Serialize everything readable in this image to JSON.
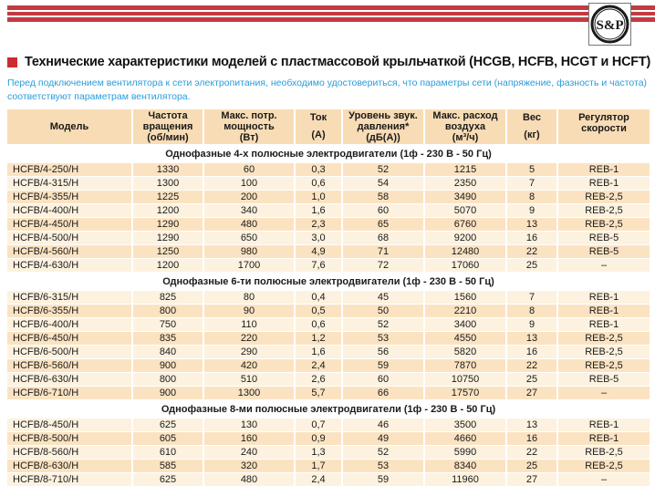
{
  "brand": {
    "logo_text": "S&P"
  },
  "page": {
    "title": "Технические характеристики моделей с пластмассовой крыльчаткой (HCGB, HCFB, HCGT и HCFT)",
    "note": "Перед подключением вентилятора к сети электропитания, необходимо удостовериться, что параметры сети (напряжение, фазность и частота) соответствуют параметрам вентилятора."
  },
  "colors": {
    "stripe_red": "#C23B41",
    "bullet_red": "#CE2A31",
    "note_blue": "#2B9CD8",
    "header_bg": "#F8DCB5",
    "row_peach": "#FBE3C2",
    "row_cream": "#FDF2DF"
  },
  "table": {
    "columns": [
      {
        "lines": [
          "Модель"
        ],
        "style": "center"
      },
      {
        "lines": [
          "Частота",
          "вращения",
          "(об/мин)"
        ],
        "style": "center"
      },
      {
        "lines": [
          "Макс. потр.",
          "мощность",
          "(Вт)"
        ],
        "style": "center"
      },
      {
        "lines": [
          "Ток",
          "(А)"
        ],
        "style": "spread"
      },
      {
        "lines": [
          "Уровень звук.",
          "давления*",
          "(дБ(А))"
        ],
        "style": "center"
      },
      {
        "lines": [
          "Макс. расход",
          "воздуха",
          "(м³/ч)"
        ],
        "style": "center"
      },
      {
        "lines": [
          "Вес",
          "(кг)"
        ],
        "style": "spread"
      },
      {
        "lines": [
          "Регулятор",
          "скорости"
        ],
        "style": "top"
      }
    ],
    "sections": [
      {
        "title": "Однофазные 4-х полюсные электродвигатели (1ф - 230 В - 50 Гц)",
        "first_row_shade": "peach",
        "rows": [
          [
            "HCFB/4-250/H",
            "1330",
            "60",
            "0,3",
            "52",
            "1215",
            "5",
            "REB-1"
          ],
          [
            "HCFB/4-315/H",
            "1300",
            "100",
            "0,6",
            "54",
            "2350",
            "7",
            "REB-1"
          ],
          [
            "HCFB/4-355/H",
            "1225",
            "200",
            "1,0",
            "58",
            "3490",
            "8",
            "REB-2,5"
          ],
          [
            "HCFB/4-400/H",
            "1200",
            "340",
            "1,6",
            "60",
            "5070",
            "9",
            "REB-2,5"
          ],
          [
            "HCFB/4-450/H",
            "1290",
            "480",
            "2,3",
            "65",
            "6760",
            "13",
            "REB-2,5"
          ],
          [
            "HCFB/4-500/H",
            "1290",
            "650",
            "3,0",
            "68",
            "9200",
            "16",
            "REB-5"
          ],
          [
            "HCFB/4-560/H",
            "1250",
            "980",
            "4,9",
            "71",
            "12480",
            "22",
            "REB-5"
          ],
          [
            "HCFB/4-630/H",
            "1200",
            "1700",
            "7,6",
            "72",
            "17060",
            "25",
            "–"
          ]
        ]
      },
      {
        "title": "Однофазные 6-ти полюсные электродвигатели (1ф - 230 В - 50 Гц)",
        "first_row_shade": "cream",
        "rows": [
          [
            "HCFB/6-315/H",
            "825",
            "80",
            "0,4",
            "45",
            "1560",
            "7",
            "REB-1"
          ],
          [
            "HCFB/6-355/H",
            "800",
            "90",
            "0,5",
            "50",
            "2210",
            "8",
            "REB-1"
          ],
          [
            "HCFB/6-400/H",
            "750",
            "110",
            "0,6",
            "52",
            "3400",
            "9",
            "REB-1"
          ],
          [
            "HCFB/6-450/H",
            "835",
            "220",
            "1,2",
            "53",
            "4550",
            "13",
            "REB-2,5"
          ],
          [
            "HCFB/6-500/H",
            "840",
            "290",
            "1,6",
            "56",
            "5820",
            "16",
            "REB-2,5"
          ],
          [
            "HCFB/6-560/H",
            "900",
            "420",
            "2,4",
            "59",
            "7870",
            "22",
            "REB-2,5"
          ],
          [
            "HCFB/6-630/H",
            "800",
            "510",
            "2,6",
            "60",
            "10750",
            "25",
            "REB-5"
          ],
          [
            "HCFB/6-710/H",
            "900",
            "1300",
            "5,7",
            "66",
            "17570",
            "27",
            "–"
          ]
        ]
      },
      {
        "title": "Однофазные 8-ми полюсные электродвигатели (1ф - 230 В - 50 Гц)",
        "first_row_shade": "cream",
        "rows": [
          [
            "HCFB/8-450/H",
            "625",
            "130",
            "0,7",
            "46",
            "3500",
            "13",
            "REB-1"
          ],
          [
            "HCFB/8-500/H",
            "605",
            "160",
            "0,9",
            "49",
            "4660",
            "16",
            "REB-1"
          ],
          [
            "HCFB/8-560/H",
            "610",
            "240",
            "1,3",
            "52",
            "5990",
            "22",
            "REB-2,5"
          ],
          [
            "HCFB/8-630/H",
            "585",
            "320",
            "1,7",
            "53",
            "8340",
            "25",
            "REB-2,5"
          ],
          [
            "HCFB/8-710/H",
            "625",
            "480",
            "2,4",
            "59",
            "11960",
            "27",
            "–"
          ]
        ]
      }
    ]
  }
}
